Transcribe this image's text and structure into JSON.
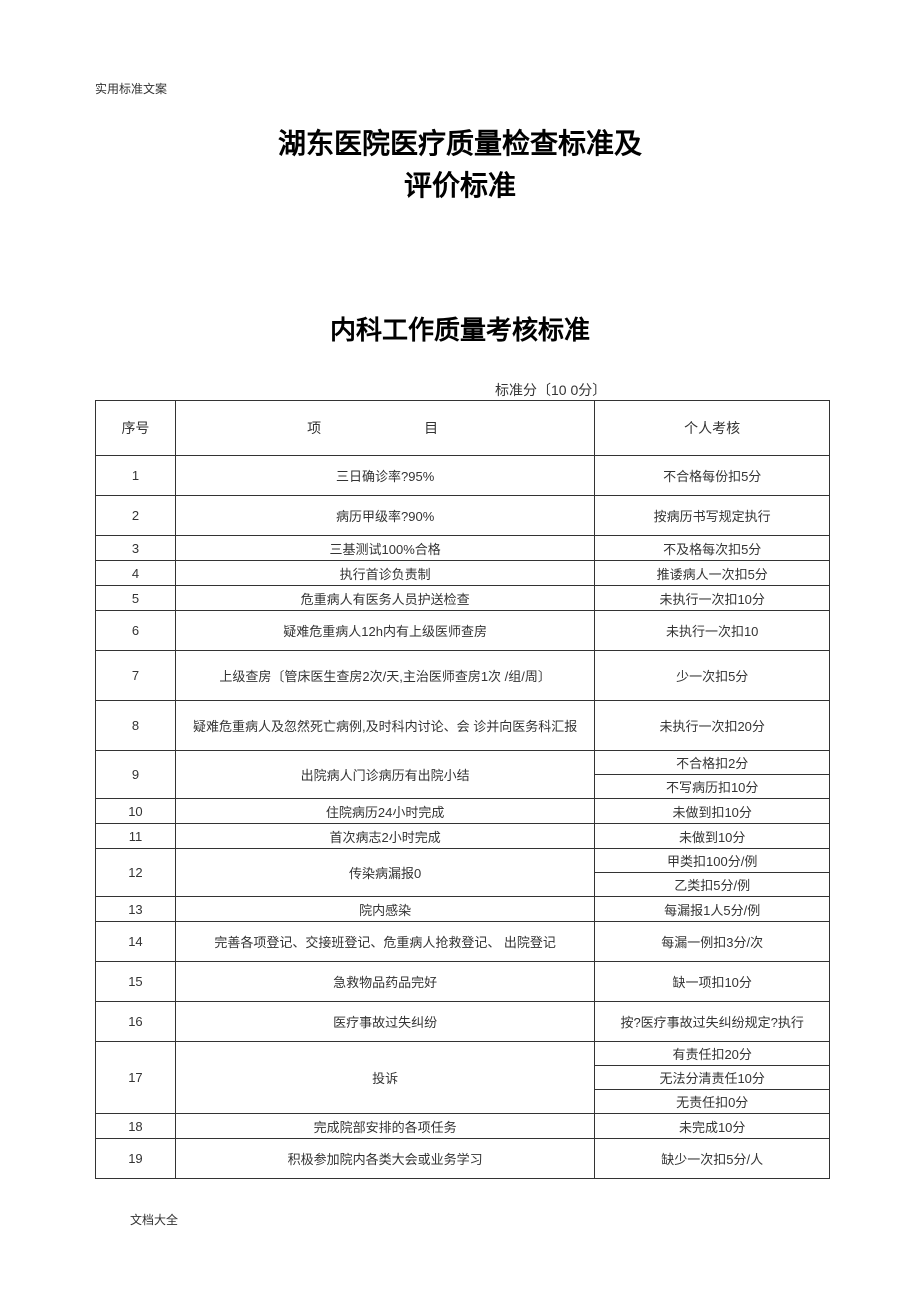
{
  "header": {
    "top_label": "实用标准文案",
    "title_line1": "湖东医院医疗质量检查标准及",
    "title_line2": "评价标准",
    "section_title": "内科工作质量考核标准",
    "score_label": "标准分〔10 0分〕"
  },
  "table": {
    "headers": {
      "seq": "序号",
      "item": "项　　目",
      "assess": "个人考核"
    },
    "rows": [
      {
        "seq": "1",
        "item": "三日确诊率?95%",
        "assess": [
          "不合格每份扣5分"
        ],
        "h": "h-med"
      },
      {
        "seq": "2",
        "item": "病历甲级率?90%",
        "assess": [
          "按病历书写规定执行"
        ],
        "h": "h-med"
      },
      {
        "seq": "3",
        "item": "三基测试100%合格",
        "assess": [
          "不及格每次扣5分"
        ],
        "h": "h-short"
      },
      {
        "seq": "4",
        "item": "执行首诊负责制",
        "assess": [
          "推诿病人一次扣5分"
        ],
        "h": "h-short"
      },
      {
        "seq": "5",
        "item": "危重病人有医务人员护送检查",
        "assess": [
          "未执行一次扣10分"
        ],
        "h": "h-short"
      },
      {
        "seq": "6",
        "item": "疑难危重病人12h内有上级医师查房",
        "assess": [
          "未执行一次扣10"
        ],
        "h": "h-med"
      },
      {
        "seq": "7",
        "item": "上级查房〔管床医生查房2次/天,主治医师查房1次 /组/周〕",
        "assess": [
          "少一次扣5分"
        ],
        "h": "h-tall"
      },
      {
        "seq": "8",
        "item": "疑难危重病人及忽然死亡病例,及时科内讨论、会 诊并向医务科汇报",
        "assess": [
          "未执行一次扣20分"
        ],
        "h": "h-tall"
      },
      {
        "seq": "9",
        "item": "出院病人门诊病历有出院小结",
        "assess": [
          "不合格扣2分",
          "不写病历扣10分"
        ],
        "h": ""
      },
      {
        "seq": "10",
        "item": "住院病历24小时完成",
        "assess": [
          "未做到扣10分"
        ],
        "h": "h-short"
      },
      {
        "seq": "11",
        "item": "首次病志2小时完成",
        "assess": [
          "未做到10分"
        ],
        "h": "h-short"
      },
      {
        "seq": "12",
        "item": "传染病漏报0",
        "assess": [
          "甲类扣100分/例",
          "乙类扣5分/例"
        ],
        "h": ""
      },
      {
        "seq": "13",
        "item": "院内感染",
        "assess": [
          "每漏报1人5分/例"
        ],
        "h": "h-short"
      },
      {
        "seq": "14",
        "item": "完善各项登记、交接班登记、危重病人抢救登记、  出院登记",
        "assess": [
          "每漏一例扣3分/次"
        ],
        "h": "h-med"
      },
      {
        "seq": "15",
        "item": "急救物品药品完好",
        "assess": [
          "缺一项扣10分"
        ],
        "h": "h-med"
      },
      {
        "seq": "16",
        "item": "医疗事故过失纠纷",
        "assess": [
          "按?医疗事故过失纠纷规定?执行"
        ],
        "h": "h-med"
      },
      {
        "seq": "17",
        "item": "投诉",
        "assess": [
          "有责任扣20分",
          "无法分清责任10分",
          "无责任扣0分"
        ],
        "h": ""
      },
      {
        "seq": "18",
        "item": "完成院部安排的各项任务",
        "assess": [
          "未完成10分"
        ],
        "h": "h-short"
      },
      {
        "seq": "19",
        "item": "积极参加院内各类大会或业务学习",
        "assess": [
          "缺少一次扣5分/人"
        ],
        "h": "h-med"
      }
    ]
  },
  "footer": {
    "label": "文档大全"
  },
  "style": {
    "background_color": "#ffffff",
    "border_color": "#333333",
    "text_color": "#333333",
    "title_fontsize": 28,
    "section_fontsize": 26,
    "body_fontsize": 13
  }
}
